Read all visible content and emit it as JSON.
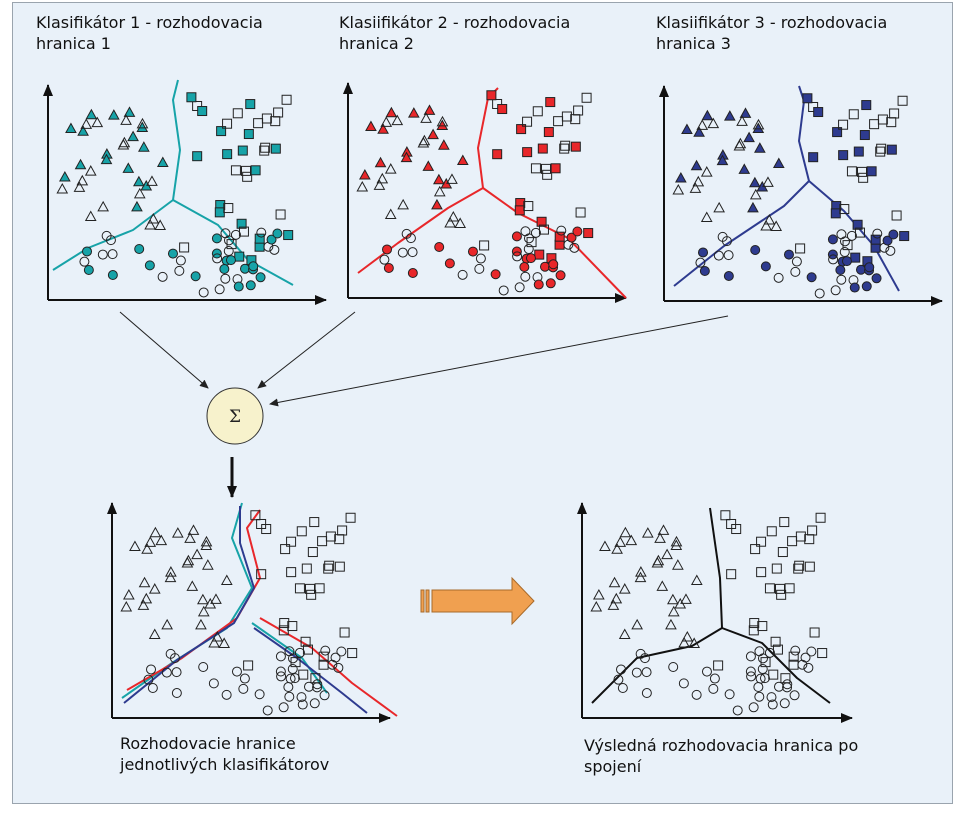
{
  "panels": {
    "classifier1_title": "Klasifikátor 1 - rozhodovacia hranica 1",
    "classifier2_title": "Klasiifikátor 2 - rozhodovacia hranica 2",
    "classifier3_title": "Klasiifikátor 3 - rozhodovacia hranica 3",
    "combined_caption": "Rozhodovacie hranice jednotlivých klasifikátorov",
    "result_caption": "Výsledná rozhodovacia hranica po spojení"
  },
  "sum_symbol": "Σ",
  "colors": {
    "panel_bg": "#e9f1f9",
    "classifier1": "#17a3a8",
    "classifier2": "#e8272a",
    "classifier3": "#2e3b8f",
    "sum_node": "#f7f2cc",
    "arrow": "#f0a050"
  }
}
